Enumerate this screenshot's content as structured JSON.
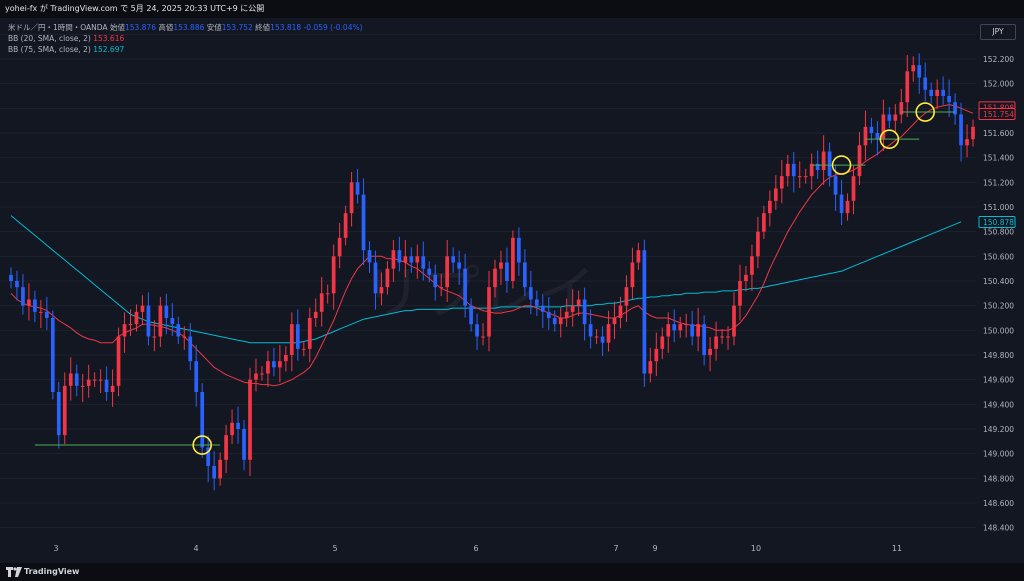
{
  "header": {
    "publisher": "yohei-fx が TradingView.com で 5月 24, 2025 20:33 UTC+9 に公開"
  },
  "legend": {
    "symbol": "米ドル／円・1時間・OANDA",
    "open_label": "始値",
    "open": "153.876",
    "high_label": "高値",
    "high": "153.886",
    "low_label": "安値",
    "low": "153.752",
    "close_label": "終値",
    "close": "153.818",
    "change": "-0.059 (-0.04%)",
    "bb1_label": "BB (20, SMA, close, 2)",
    "bb1_value": "153.616",
    "bb2_label": "BB (75, SMA, close, 2)",
    "bb2_value": "152.697"
  },
  "currency_button": "JPY",
  "watermark": "リプレイ",
  "footer": {
    "brand": "TradingView"
  },
  "colors": {
    "up": "#f23645",
    "down": "#2962ff",
    "bb20": "#f23645",
    "bb75": "#00bcd4",
    "level": "#4caf50",
    "marker": "#ffeb3b",
    "bg": "#131722"
  },
  "chart_data": {
    "type": "candlestick",
    "ylim": [
      148.3,
      152.5
    ],
    "y_ticks": [
      "152.400",
      "152.200",
      "152.000",
      "151.800",
      "151.600",
      "151.400",
      "151.200",
      "151.000",
      "150.800",
      "150.600",
      "150.400",
      "150.200",
      "150.000",
      "149.800",
      "149.600",
      "149.400",
      "149.200",
      "149.000",
      "148.800",
      "148.600",
      "148.400"
    ],
    "x_labels": [
      "3",
      "4",
      "5",
      "6",
      "7",
      "9",
      "10",
      "11"
    ],
    "price_labels": [
      {
        "value": 151.808,
        "text": "151.808",
        "color": "#f23645"
      },
      {
        "value": 151.754,
        "text": "151.754",
        "color": "#f23645"
      },
      {
        "value": 150.878,
        "text": "150.878",
        "color": "#00bcd4"
      }
    ],
    "closes": [
      150.4,
      150.35,
      150.2,
      150.25,
      150.15,
      150.15,
      150.1,
      149.5,
      149.15,
      149.55,
      149.65,
      149.55,
      149.55,
      149.6,
      149.6,
      149.6,
      149.5,
      149.55,
      149.95,
      150.05,
      150.05,
      150.15,
      150.2,
      149.95,
      149.95,
      150.2,
      150.1,
      150.05,
      149.95,
      149.95,
      149.75,
      149.5,
      149.05,
      148.9,
      148.8,
      148.95,
      149.15,
      149.25,
      149.2,
      148.95,
      149.6,
      149.65,
      149.65,
      149.75,
      149.7,
      149.75,
      149.8,
      150.05,
      149.85,
      149.85,
      150.1,
      150.15,
      150.3,
      150.3,
      150.6,
      150.75,
      150.95,
      151.2,
      151.1,
      150.65,
      150.55,
      150.3,
      150.35,
      150.5,
      150.65,
      150.55,
      150.6,
      150.55,
      150.6,
      150.5,
      150.45,
      150.35,
      150.35,
      150.6,
      150.55,
      150.5,
      150.2,
      150.05,
      149.95,
      149.95,
      150.35,
      150.5,
      150.55,
      150.4,
      150.75,
      150.55,
      150.35,
      150.25,
      150.2,
      150.15,
      150.1,
      150.05,
      150.1,
      150.15,
      150.2,
      150.25,
      150.05,
      149.95,
      149.95,
      149.9,
      150.05,
      150.1,
      150.2,
      150.35,
      150.55,
      150.65,
      149.65,
      149.75,
      149.85,
      149.95,
      150.05,
      150.0,
      150.05,
      150.05,
      149.95,
      150.05,
      149.8,
      149.85,
      149.95,
      149.95,
      149.95,
      150.2,
      150.4,
      150.45,
      150.6,
      150.8,
      150.95,
      151.05,
      151.15,
      151.25,
      151.35,
      151.25,
      151.25,
      151.25,
      151.35,
      151.3,
      151.45,
      151.25,
      151.1,
      150.95,
      151.05,
      151.25,
      151.5,
      151.65,
      151.6,
      151.55,
      151.75,
      151.7,
      151.75,
      151.85,
      152.1,
      152.15,
      152.05,
      151.95,
      151.9,
      151.95,
      151.9,
      151.85,
      151.75,
      151.5,
      151.55,
      151.65
    ],
    "bb20": [
      150.3,
      150.25,
      150.22,
      150.2,
      150.19,
      150.18,
      150.16,
      150.12,
      150.08,
      150.05,
      150.02,
      149.98,
      149.95,
      149.93,
      149.92,
      149.9,
      149.9,
      149.9,
      149.95,
      149.98,
      150.0,
      150.02,
      150.05,
      150.05,
      150.04,
      150.03,
      150.02,
      150.0,
      149.98,
      149.95,
      149.9,
      149.85,
      149.8,
      149.75,
      149.7,
      149.67,
      149.64,
      149.62,
      149.6,
      149.58,
      149.57,
      149.57,
      149.56,
      149.56,
      149.55,
      149.56,
      149.58,
      149.6,
      149.63,
      149.66,
      149.7,
      149.78,
      149.88,
      149.98,
      150.08,
      150.2,
      150.32,
      150.42,
      150.5,
      150.55,
      150.6,
      150.6,
      150.6,
      150.58,
      150.58,
      150.57,
      150.55,
      150.52,
      150.5,
      150.46,
      150.42,
      150.38,
      150.34,
      150.32,
      150.3,
      150.28,
      150.24,
      150.2,
      150.18,
      150.16,
      150.15,
      150.14,
      150.14,
      150.15,
      150.16,
      150.18,
      150.2,
      150.2,
      150.18,
      150.16,
      150.14,
      150.12,
      150.1,
      150.1,
      150.12,
      150.14,
      150.14,
      150.13,
      150.12,
      150.11,
      150.1,
      150.1,
      150.12,
      150.15,
      150.18,
      150.2,
      150.15,
      150.12,
      150.1,
      150.1,
      150.1,
      150.08,
      150.06,
      150.05,
      150.04,
      150.04,
      150.03,
      150.02,
      150.0,
      150.0,
      150.0,
      150.02,
      150.06,
      150.12,
      150.2,
      150.28,
      150.38,
      150.5,
      150.6,
      150.7,
      150.8,
      150.88,
      150.96,
      151.03,
      151.1,
      151.15,
      151.2,
      151.24,
      151.26,
      151.27,
      151.28,
      151.3,
      151.33,
      151.37,
      151.4,
      151.43,
      151.47,
      151.5,
      151.54,
      151.57,
      151.62,
      151.67,
      151.72,
      151.76,
      151.79,
      151.81,
      151.82,
      151.83,
      151.82,
      151.8,
      151.78,
      151.76
    ],
    "bb75": [
      150.93,
      150.89,
      150.85,
      150.81,
      150.77,
      150.73,
      150.69,
      150.65,
      150.61,
      150.57,
      150.53,
      150.49,
      150.45,
      150.41,
      150.37,
      150.33,
      150.29,
      150.25,
      150.21,
      150.17,
      150.13,
      150.11,
      150.09,
      150.07,
      150.06,
      150.05,
      150.04,
      150.03,
      150.02,
      150.01,
      150.0,
      149.99,
      149.98,
      149.97,
      149.96,
      149.95,
      149.94,
      149.93,
      149.92,
      149.91,
      149.9,
      149.9,
      149.9,
      149.9,
      149.9,
      149.9,
      149.9,
      149.9,
      149.9,
      149.91,
      149.92,
      149.93,
      149.95,
      149.97,
      149.99,
      150.01,
      150.03,
      150.05,
      150.07,
      150.09,
      150.1,
      150.11,
      150.12,
      150.13,
      150.14,
      150.15,
      150.16,
      150.16,
      150.17,
      150.17,
      150.17,
      150.17,
      150.17,
      150.17,
      150.18,
      150.18,
      150.18,
      150.18,
      150.18,
      150.18,
      150.18,
      150.18,
      150.19,
      150.19,
      150.19,
      150.19,
      150.19,
      150.19,
      150.19,
      150.19,
      150.19,
      150.19,
      150.19,
      150.2,
      150.2,
      150.2,
      150.2,
      150.2,
      150.21,
      150.21,
      150.22,
      150.22,
      150.23,
      150.24,
      150.25,
      150.26,
      150.26,
      150.27,
      150.27,
      150.28,
      150.28,
      150.29,
      150.29,
      150.3,
      150.3,
      150.3,
      150.31,
      150.31,
      150.31,
      150.32,
      150.32,
      150.32,
      150.33,
      150.33,
      150.34,
      150.34,
      150.35,
      150.36,
      150.37,
      150.38,
      150.39,
      150.4,
      150.41,
      150.42,
      150.43,
      150.44,
      150.45,
      150.46,
      150.47,
      150.48,
      150.5,
      150.52,
      150.54,
      150.56,
      150.58,
      150.6,
      150.62,
      150.64,
      150.66,
      150.68,
      150.7,
      150.72,
      150.74,
      150.76,
      150.78,
      150.8,
      150.82,
      150.84,
      150.86,
      150.88
    ],
    "levels": [
      {
        "value": 149.07,
        "from": 4,
        "to": 35
      },
      {
        "value": 151.34,
        "from": 134,
        "to": 143
      },
      {
        "value": 151.55,
        "from": 143,
        "to": 152
      },
      {
        "value": 151.77,
        "from": 149,
        "to": 158
      }
    ],
    "markers": [
      {
        "index": 32,
        "value": 149.07
      },
      {
        "index": 139,
        "value": 151.34
      },
      {
        "index": 147,
        "value": 151.55
      },
      {
        "index": 153,
        "value": 151.77
      }
    ]
  }
}
